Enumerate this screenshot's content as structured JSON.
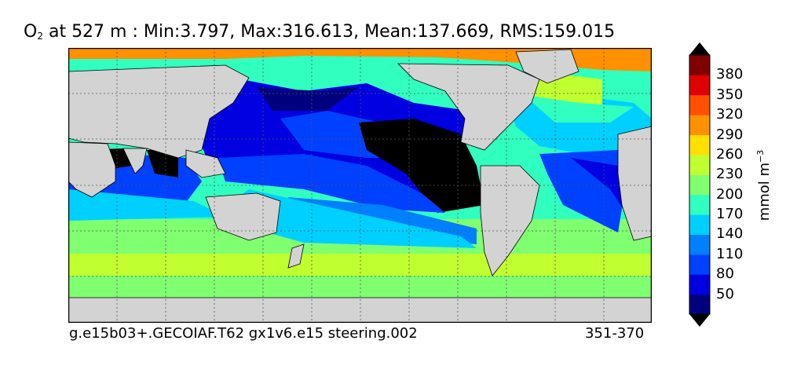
{
  "title": {
    "variable_main": "O",
    "variable_sub": "2",
    "rest": " at 527 m : Min:3.797, Max:316.613, Mean:137.669, RMS:159.015"
  },
  "footer": {
    "case_name": "g.e15b03+.GECOIAF.T62 gx1v6.e15 steering.002",
    "years": "351-370"
  },
  "colorbar": {
    "units_main": "mmol m",
    "units_exp": "−3",
    "tick_labels": [
      "50",
      "80",
      "110",
      "140",
      "170",
      "200",
      "230",
      "260",
      "290",
      "320",
      "350",
      "380"
    ],
    "colors": [
      "#00007f",
      "#0000e0",
      "#0040ff",
      "#0080ff",
      "#00d0ff",
      "#30ffc0",
      "#80ff70",
      "#c0ff30",
      "#ffe000",
      "#ff9000",
      "#ff5000",
      "#e00000",
      "#800000"
    ]
  },
  "map": {
    "land_color": "#d3d3d3",
    "ice_color": "#ffffff",
    "gridlines": "dotted"
  }
}
